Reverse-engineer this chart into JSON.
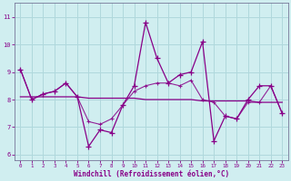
{
  "title": "",
  "xlabel": "Windchill (Refroidissement éolien,°C)",
  "ylabel": "",
  "background_color": "#d0eef0",
  "grid_color": "#b0d8dc",
  "line_color": "#880088",
  "xlim": [
    -0.5,
    23.5
  ],
  "ylim": [
    5.8,
    11.5
  ],
  "yticks": [
    6,
    7,
    8,
    9,
    10,
    11
  ],
  "xticks": [
    0,
    1,
    2,
    3,
    4,
    5,
    6,
    7,
    8,
    9,
    10,
    11,
    12,
    13,
    14,
    15,
    16,
    17,
    18,
    19,
    20,
    21,
    22,
    23
  ],
  "data_y": [
    9.1,
    8.0,
    8.2,
    8.3,
    8.6,
    8.1,
    6.3,
    6.9,
    6.8,
    7.8,
    8.5,
    10.8,
    9.5,
    8.6,
    8.9,
    9.0,
    10.1,
    6.5,
    7.4,
    7.3,
    8.0,
    8.5,
    8.5,
    7.5
  ],
  "flat_y": [
    8.1,
    8.1,
    8.1,
    8.1,
    8.1,
    8.1,
    8.05,
    8.05,
    8.05,
    8.05,
    8.05,
    8.0,
    8.0,
    8.0,
    8.0,
    8.0,
    7.95,
    7.95,
    7.95,
    7.95,
    7.95,
    7.9,
    7.9,
    7.9
  ],
  "smooth_y": [
    9.1,
    8.0,
    8.2,
    8.3,
    8.6,
    8.1,
    7.2,
    7.1,
    7.3,
    7.8,
    8.3,
    8.5,
    8.6,
    8.6,
    8.5,
    8.7,
    8.0,
    7.9,
    7.4,
    7.3,
    7.9,
    7.9,
    8.5,
    7.5
  ]
}
